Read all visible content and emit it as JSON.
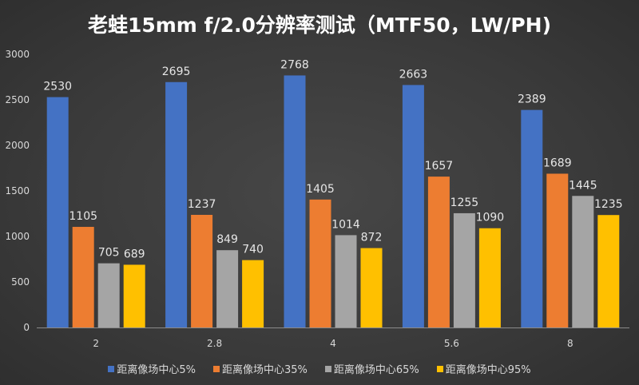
{
  "chart_data": {
    "type": "bar",
    "title": "老蛙15mm f/2.0分辨率测试（MTF50，LW/PH)",
    "xlabel": "",
    "ylabel": "",
    "categories": [
      "2",
      "2.8",
      "4",
      "5.6",
      "8"
    ],
    "ylim": [
      0,
      3000
    ],
    "yticks": [
      0,
      500,
      1000,
      1500,
      2000,
      2500,
      3000
    ],
    "grid": false,
    "legend": "bottom",
    "series": [
      {
        "name": "距离像场中心5%",
        "color": "#4472c4",
        "values": [
          2530,
          2695,
          2768,
          2663,
          2389
        ]
      },
      {
        "name": "距离像场中心35%",
        "color": "#ed7d31",
        "values": [
          1105,
          1237,
          1405,
          1657,
          1689
        ]
      },
      {
        "name": "距离像场中心65%",
        "color": "#a5a5a5",
        "values": [
          705,
          849,
          1014,
          1255,
          1445
        ]
      },
      {
        "name": "距离像场中心95%",
        "color": "#ffc000",
        "values": [
          689,
          740,
          872,
          1090,
          1235
        ]
      }
    ]
  }
}
